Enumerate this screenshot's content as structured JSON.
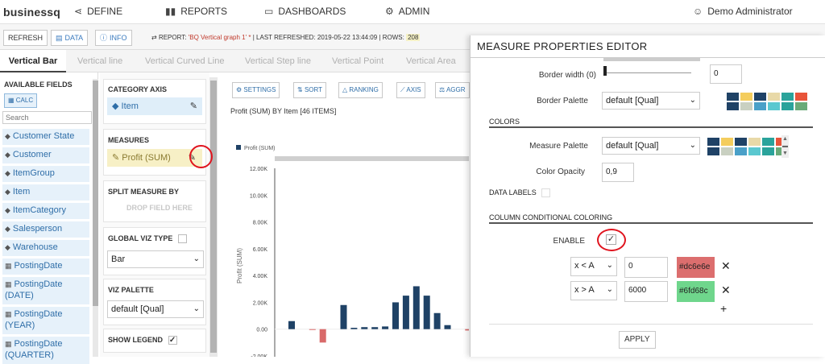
{
  "nav": {
    "logo": "businessq",
    "define": "DEFINE",
    "reports": "REPORTS",
    "dashboards": "DASHBOARDS",
    "admin": "ADMIN",
    "user": "Demo Administrator"
  },
  "toolbar": {
    "refresh": "REFRESH",
    "data": "DATA",
    "info": "INFO",
    "report_prefix": "REPORT:",
    "report_name": "'BQ Vertical graph 1'",
    "report_star": "*",
    "last_refreshed": "| LAST REFRESHED: 2019-05-22 13:44:09 | ROWS:",
    "rows": "208"
  },
  "tabs": [
    "Vertical Bar",
    "Vertical line",
    "Vertical Curved Line",
    "Vertical Step line",
    "Vertical Point",
    "Vertical Area"
  ],
  "fields": {
    "title": "AVAILABLE FIELDS",
    "calc": "CALC",
    "search_placeholder": "Search",
    "items": [
      {
        "label": "Customer State",
        "icon": "cube-icon"
      },
      {
        "label": "Customer",
        "icon": "cube-icon"
      },
      {
        "label": "ItemGroup",
        "icon": "cube-icon"
      },
      {
        "label": "Item",
        "icon": "cube-icon"
      },
      {
        "label": "ItemCategory",
        "icon": "cube-icon"
      },
      {
        "label": "Salesperson",
        "icon": "cube-icon"
      },
      {
        "label": "Warehouse",
        "icon": "cube-icon"
      },
      {
        "label": "PostingDate",
        "icon": "calendar-icon"
      },
      {
        "label": "PostingDate (DATE)",
        "icon": "calendar-icon"
      },
      {
        "label": "PostingDate (YEAR)",
        "icon": "calendar-icon"
      },
      {
        "label": "PostingDate (QUARTER)",
        "icon": "calendar-icon"
      }
    ]
  },
  "config": {
    "category_axis": "CATEGORY AXIS",
    "category_item": "Item",
    "measures": "MEASURES",
    "measure_item": "Profit (SUM)",
    "split_measure": "SPLIT MEASURE BY",
    "drop_field": "DROP FIELD HERE",
    "global_viz_type": "GLOBAL VIZ TYPE",
    "viz_type_value": "Bar",
    "viz_palette": "VIZ PALETTE",
    "viz_palette_value": "default [Qual]",
    "show_legend": "SHOW LEGEND"
  },
  "chart_tools": [
    "SETTINGS",
    "SORT",
    "RANKING",
    "AXIS",
    "AGGR"
  ],
  "chart_title": "Profit (SUM) BY Item [46 ITEMS]",
  "chart_data": {
    "type": "bar",
    "legend": "Profit (SUM)",
    "ylabel": "Profit (SUM)",
    "ylim": [
      -2000,
      12000
    ],
    "yticks": [
      "12.00K",
      "10.00K",
      "8.00K",
      "6.00K",
      "4.00K",
      "2.00K",
      "0.00",
      "-2.00K"
    ],
    "values": [
      600,
      0,
      -50,
      -1000,
      0,
      1800,
      100,
      150,
      150,
      200,
      2000,
      2500,
      3200,
      2500,
      1200,
      300,
      0,
      -100
    ],
    "colors": {
      "positive": "#1f4266",
      "negative": "#d96a6a"
    }
  },
  "modal": {
    "title": "MEASURE PROPERTIES EDITOR",
    "border_width_label": "Border width (0)",
    "border_width_value": "0",
    "border_palette_label": "Border Palette",
    "border_palette_value": "default [Qual]",
    "colors_section": "COLORS",
    "measure_palette_label": "Measure Palette",
    "measure_palette_value": "default [Qual]",
    "color_opacity_label": "Color Opacity",
    "color_opacity_value": "0,9",
    "data_labels": "DATA LABELS",
    "ccc_section": "COLUMN CONDITIONAL COLORING",
    "enable_label": "ENABLE",
    "rules": [
      {
        "op": "x < A",
        "value": "0",
        "color": "#dc6e6e"
      },
      {
        "op": "x > A",
        "value": "6000",
        "color": "#6fd68c"
      }
    ],
    "apply": "APPLY",
    "palette_colors": [
      "#1f4266",
      "#f4cd5d",
      "#1f4266",
      "#e8d9a8",
      "#2aa39b",
      "#e8543a",
      "#1f4266",
      "#c9d0c1",
      "#4aa0c8",
      "#5bc8d0",
      "#2aa39b",
      "#6aaa78"
    ]
  }
}
